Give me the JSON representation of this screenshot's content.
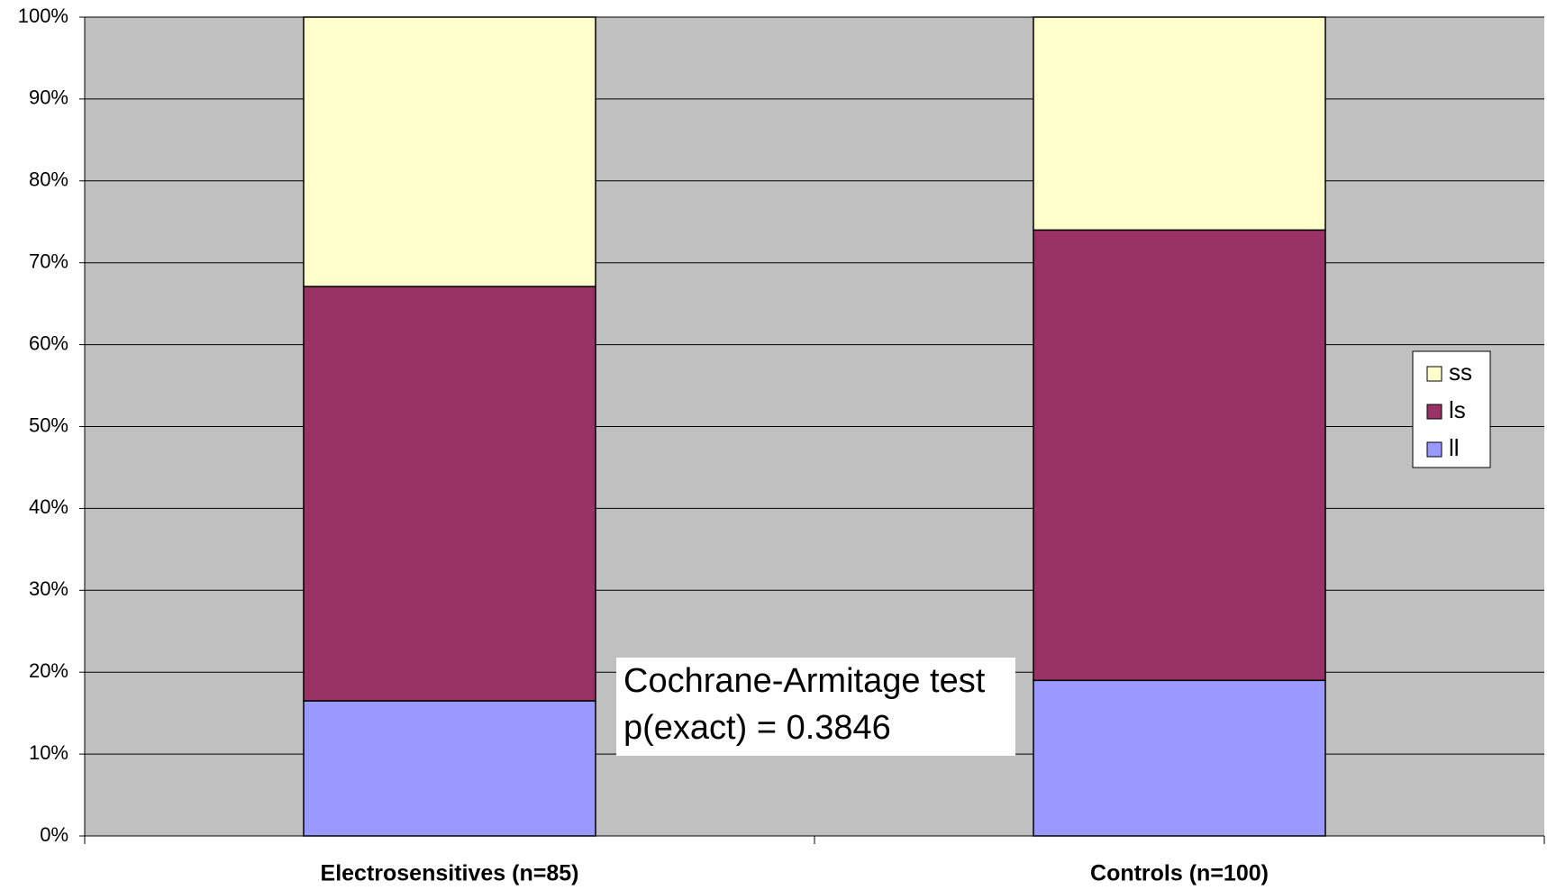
{
  "chart_data": {
    "type": "stacked_bar",
    "categories": [
      "Electrosensitives (n=85)",
      "Controls (n=100)"
    ],
    "series": [
      {
        "name": "ll",
        "color": "#9999ff",
        "values": [
          16.5,
          19
        ]
      },
      {
        "name": "ls",
        "color": "#993366",
        "values": [
          50.6,
          55
        ]
      },
      {
        "name": "ss",
        "color": "#ffffcc",
        "values": [
          32.9,
          26
        ]
      }
    ],
    "ylim": [
      0,
      100
    ],
    "yticks": [
      {
        "value": 0,
        "label": "0%"
      },
      {
        "value": 10,
        "label": "10%"
      },
      {
        "value": 20,
        "label": "20%"
      },
      {
        "value": 30,
        "label": "30%"
      },
      {
        "value": 40,
        "label": "40%"
      },
      {
        "value": 50,
        "label": "50%"
      },
      {
        "value": 60,
        "label": "60%"
      },
      {
        "value": 70,
        "label": "70%"
      },
      {
        "value": 80,
        "label": "80%"
      },
      {
        "value": 90,
        "label": "90%"
      },
      {
        "value": 100,
        "label": "100%"
      }
    ],
    "grid": true,
    "legend": "right",
    "annotations": [
      "Cochrane-Armitage test",
      "p(exact) = 0.3846"
    ]
  }
}
